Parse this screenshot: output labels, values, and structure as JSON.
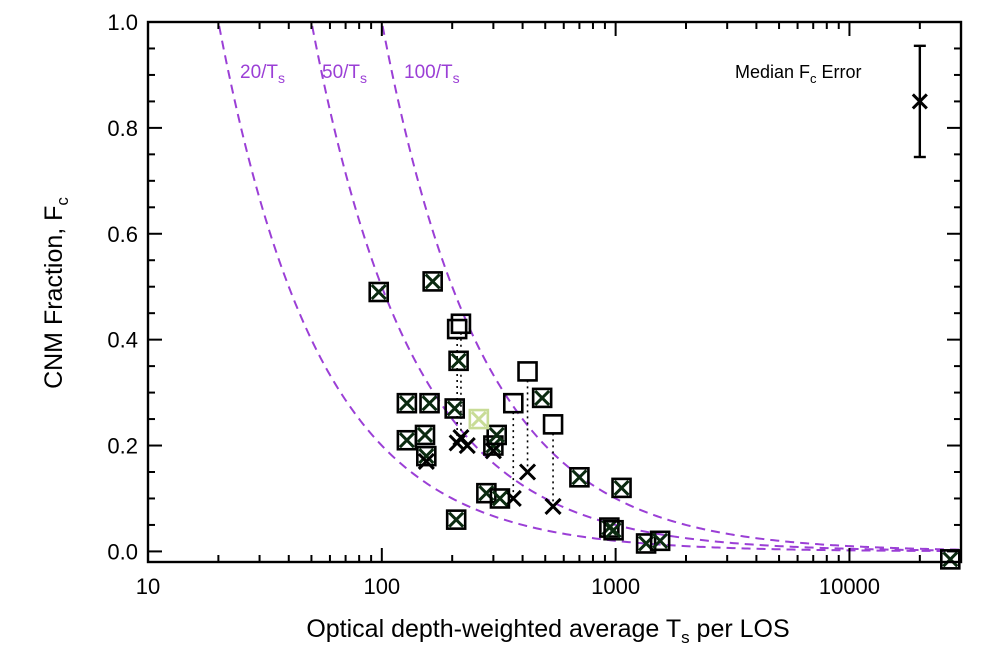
{
  "chart_data": {
    "type": "scatter",
    "title": "",
    "xlabel": "Optical depth-weighted average T",
    "xlabel_sub": "s",
    "xlabel_tail": " per LOS",
    "ylabel": "CNM Fraction, F",
    "ylabel_sub": "c",
    "xscale": "log",
    "xlim": [
      10,
      30000
    ],
    "ylim": [
      -0.02,
      1.0
    ],
    "x_ticks": [
      10,
      100,
      1000,
      10000
    ],
    "x_tick_labels": [
      "10",
      "100",
      "1000",
      "10000"
    ],
    "y_ticks": [
      0.0,
      0.2,
      0.4,
      0.6,
      0.8,
      1.0
    ],
    "y_tick_labels": [
      "0.0",
      "0.2",
      "0.4",
      "0.6",
      "0.8",
      "1.0"
    ],
    "colors": {
      "curve": "#9b3fd6",
      "marker_dark": "#0b2a10",
      "marker_light": "#c8dc96",
      "axis": "#000000"
    },
    "curves": [
      {
        "label": "20/T",
        "label_sub": "s",
        "k": 20
      },
      {
        "label": "50/T",
        "label_sub": "s",
        "k": 50
      },
      {
        "label": "100/T",
        "label_sub": "s",
        "k": 100
      }
    ],
    "points_square_cross": [
      {
        "x": 97,
        "y": 0.49
      },
      {
        "x": 165,
        "y": 0.51
      },
      {
        "x": 128,
        "y": 0.28
      },
      {
        "x": 160,
        "y": 0.28
      },
      {
        "x": 128,
        "y": 0.21
      },
      {
        "x": 153,
        "y": 0.22
      },
      {
        "x": 155,
        "y": 0.18
      },
      {
        "x": 205,
        "y": 0.27
      },
      {
        "x": 213,
        "y": 0.36
      },
      {
        "x": 208,
        "y": 0.06
      },
      {
        "x": 280,
        "y": 0.11
      },
      {
        "x": 320,
        "y": 0.1
      },
      {
        "x": 300,
        "y": 0.2
      },
      {
        "x": 310,
        "y": 0.22
      },
      {
        "x": 485,
        "y": 0.29
      },
      {
        "x": 700,
        "y": 0.14
      },
      {
        "x": 1060,
        "y": 0.12
      },
      {
        "x": 940,
        "y": 0.045
      },
      {
        "x": 980,
        "y": 0.04
      },
      {
        "x": 1350,
        "y": 0.015
      },
      {
        "x": 1550,
        "y": 0.02
      },
      {
        "x": 27000,
        "y": -0.015
      }
    ],
    "points_square_cross_light": [
      {
        "x": 260,
        "y": 0.25
      }
    ],
    "points_pairs": [
      {
        "x": 210,
        "y_square": 0.42,
        "y_cross": 0.205
      },
      {
        "x": 218,
        "y_square": 0.43,
        "y_cross": 0.215
      },
      {
        "x": 365,
        "y_square": 0.28,
        "y_cross": 0.1
      },
      {
        "x": 420,
        "y_square": 0.34,
        "y_cross": 0.15
      },
      {
        "x": 540,
        "y_square": 0.24,
        "y_cross": 0.085
      }
    ],
    "points_cross_only": [
      {
        "x": 155,
        "y": 0.17
      },
      {
        "x": 300,
        "y": 0.19
      },
      {
        "x": 232,
        "y": 0.2
      }
    ],
    "median_error": {
      "label": "Median F",
      "label_sub": "c",
      "label_tail": " Error",
      "x": 20000,
      "y": 0.85,
      "yerr": 0.105
    }
  }
}
